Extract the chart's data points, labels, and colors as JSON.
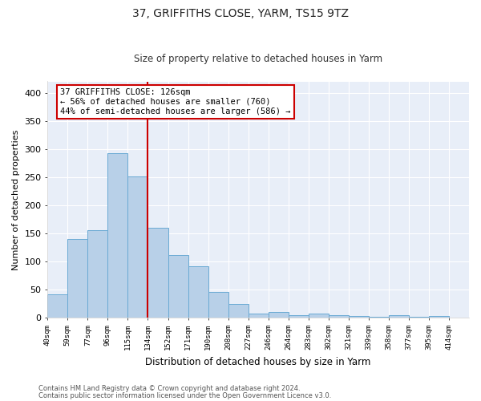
{
  "title": "37, GRIFFITHS CLOSE, YARM, TS15 9TZ",
  "subtitle": "Size of property relative to detached houses in Yarm",
  "xlabel": "Distribution of detached houses by size in Yarm",
  "ylabel": "Number of detached properties",
  "footnote1": "Contains HM Land Registry data © Crown copyright and database right 2024.",
  "footnote2": "Contains public sector information licensed under the Open Government Licence v3.0.",
  "bar_labels": [
    "40sqm",
    "59sqm",
    "77sqm",
    "96sqm",
    "115sqm",
    "134sqm",
    "152sqm",
    "171sqm",
    "190sqm",
    "208sqm",
    "227sqm",
    "246sqm",
    "264sqm",
    "283sqm",
    "302sqm",
    "321sqm",
    "339sqm",
    "358sqm",
    "377sqm",
    "395sqm",
    "414sqm"
  ],
  "bar_values": [
    42,
    140,
    155,
    293,
    251,
    160,
    112,
    91,
    46,
    24,
    8,
    10,
    5,
    8,
    4,
    3,
    2,
    4,
    2,
    3,
    1
  ],
  "bar_color": "#b8d0e8",
  "bar_edgecolor": "#6aaad4",
  "bg_color": "#e8eef8",
  "grid_color": "#ffffff",
  "vline_color": "#cc0000",
  "annotation_text": "37 GRIFFITHS CLOSE: 126sqm\n← 56% of detached houses are smaller (760)\n44% of semi-detached houses are larger (586) →",
  "annotation_box_facecolor": "#ffffff",
  "annotation_box_edgecolor": "#cc0000",
  "ylim": [
    0,
    420
  ],
  "yticks": [
    0,
    50,
    100,
    150,
    200,
    250,
    300,
    350,
    400
  ],
  "fig_facecolor": "#ffffff",
  "title_fontsize": 10,
  "subtitle_fontsize": 8.5
}
